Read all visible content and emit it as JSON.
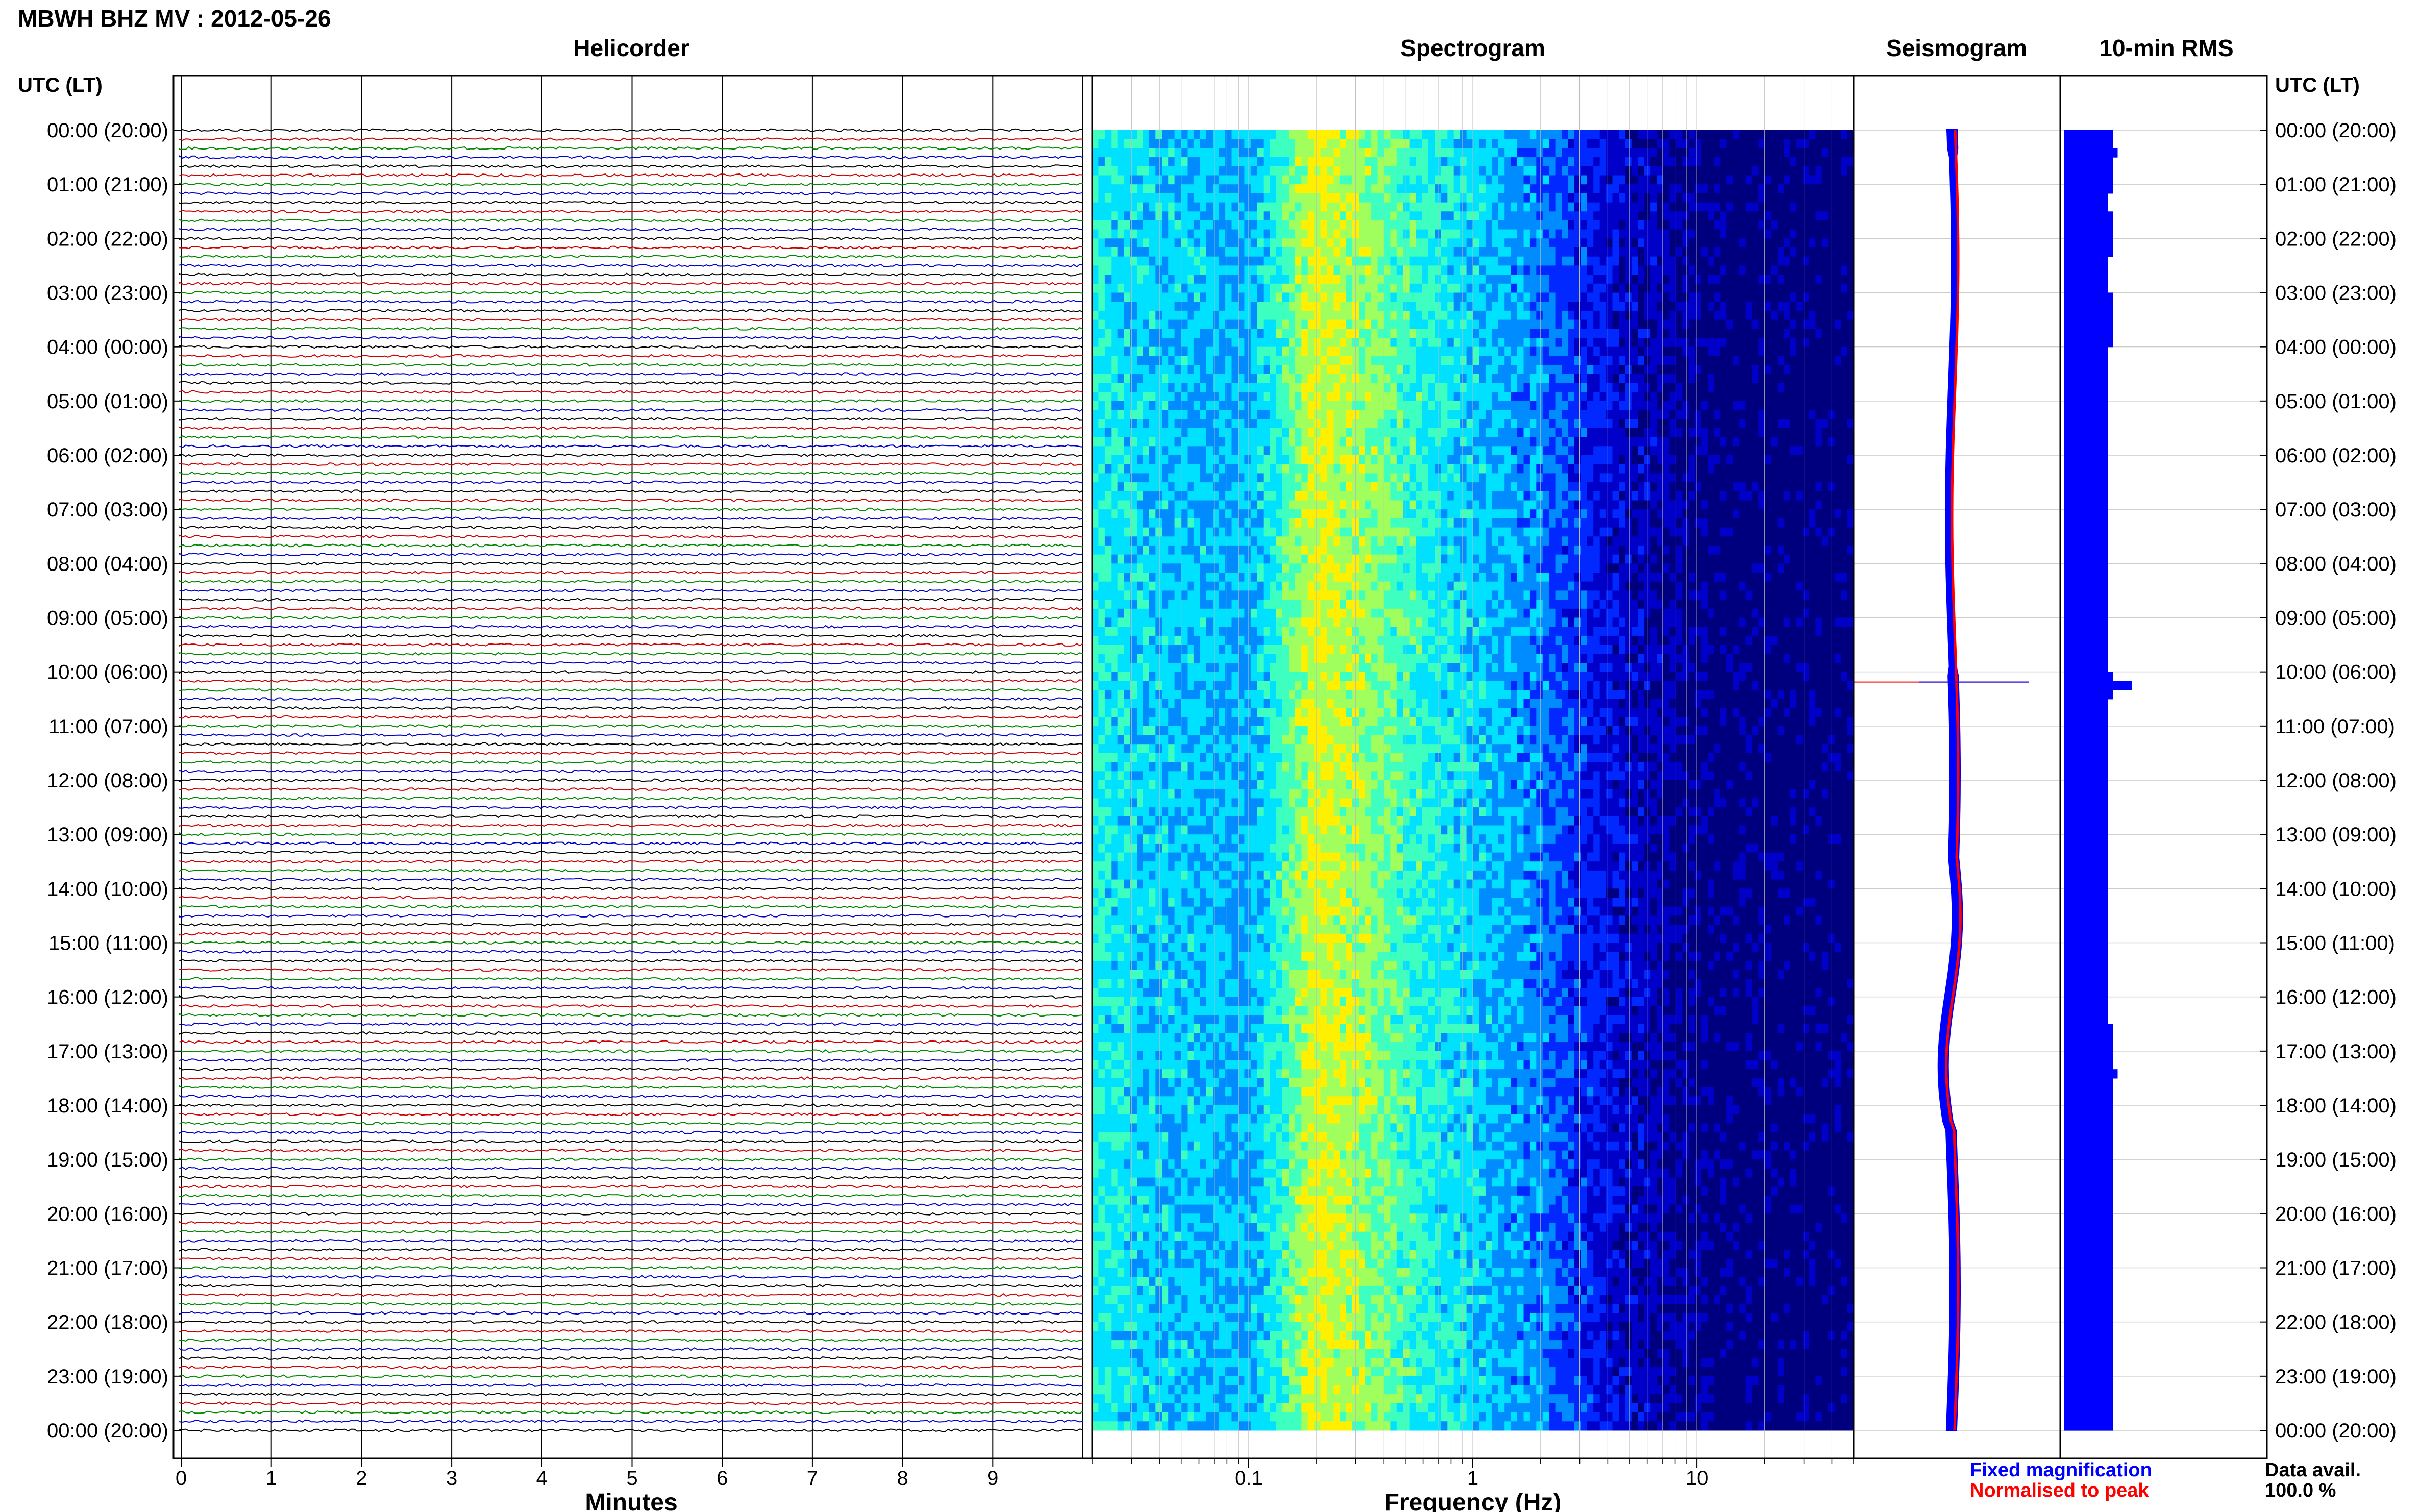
{
  "header": {
    "title": "MBWH BHZ MV : 2012-05-26",
    "utc_label_left": "UTC (LT)",
    "utc_label_right": "UTC (LT)"
  },
  "panels": {
    "helicorder": "Helicorder",
    "spectrogram": "Spectrogram",
    "seismogram": "Seismogram",
    "rms": "10-min RMS"
  },
  "axes": {
    "helicorder_xlabel": "Minutes",
    "spectrogram_xlabel": "Frequency (Hz)"
  },
  "legend": {
    "fixed": "Fixed magnification",
    "normalised": "Normalised to peak",
    "fixed_color": "#0000ff",
    "normalised_color": "#ff0000"
  },
  "data_avail": {
    "label": "Data avail.",
    "value": "100.0 %"
  },
  "chart_data": {
    "type": "heatmap",
    "time_labels": [
      "00:00 (20:00)",
      "01:00 (21:00)",
      "02:00 (22:00)",
      "03:00 (23:00)",
      "04:00 (00:00)",
      "05:00 (01:00)",
      "06:00 (02:00)",
      "07:00 (03:00)",
      "08:00 (04:00)",
      "09:00 (05:00)",
      "10:00 (06:00)",
      "11:00 (07:00)",
      "12:00 (08:00)",
      "13:00 (09:00)",
      "14:00 (10:00)",
      "15:00 (11:00)",
      "16:00 (12:00)",
      "17:00 (13:00)",
      "18:00 (14:00)",
      "19:00 (15:00)",
      "20:00 (16:00)",
      "21:00 (17:00)",
      "22:00 (18:00)",
      "23:00 (19:00)",
      "00:00 (20:00)"
    ],
    "minute_ticks": [
      "0",
      "1",
      "2",
      "3",
      "4",
      "5",
      "6",
      "7",
      "8",
      "9"
    ],
    "freq_ticks": [
      {
        "value": 0.1,
        "label": "0.1"
      },
      {
        "value": 1,
        "label": "1"
      },
      {
        "value": 10,
        "label": "10"
      }
    ],
    "freq_range": [
      0.02,
      50
    ],
    "trace_colors": [
      "#000000",
      "#cc0000",
      "#008800",
      "#0000cc"
    ],
    "colormap": [
      "#00007f",
      "#0000c8",
      "#0028ff",
      "#008cff",
      "#00e0ff",
      "#3cffc0",
      "#a0ff5c",
      "#fff000"
    ],
    "spectrum_profile": [
      {
        "f": 0.02,
        "level": 0.62
      },
      {
        "f": 0.035,
        "level": 0.55
      },
      {
        "f": 0.06,
        "level": 0.52
      },
      {
        "f": 0.1,
        "level": 0.5
      },
      {
        "f": 0.13,
        "level": 0.62
      },
      {
        "f": 0.2,
        "level": 0.9
      },
      {
        "f": 0.35,
        "level": 0.78
      },
      {
        "f": 0.7,
        "level": 0.6
      },
      {
        "f": 1.0,
        "level": 0.55
      },
      {
        "f": 2.0,
        "level": 0.42
      },
      {
        "f": 4.0,
        "level": 0.22
      },
      {
        "f": 8.0,
        "level": 0.12
      },
      {
        "f": 12,
        "level": 0.06
      },
      {
        "f": 50,
        "level": 0.04
      }
    ],
    "seismogram_amplitude_10min": [
      3,
      3,
      3,
      2,
      2,
      2,
      2,
      2,
      2,
      2,
      2,
      2,
      2,
      2,
      2,
      2,
      2,
      2,
      2,
      2,
      2,
      2,
      2,
      2,
      2,
      2,
      2,
      2,
      2,
      2,
      2,
      2,
      2,
      2,
      2,
      2,
      2,
      2,
      2,
      2,
      2,
      2,
      2,
      2,
      2,
      2,
      2,
      2,
      2,
      2,
      2,
      2,
      2,
      2,
      2,
      2,
      2,
      2,
      2,
      2,
      3,
      3,
      3,
      3,
      3,
      3,
      3,
      3,
      3,
      3,
      3,
      3,
      3,
      3,
      3,
      3,
      3,
      3,
      3,
      3,
      3,
      3,
      3,
      3,
      3,
      3,
      3,
      3,
      3,
      3,
      3,
      3,
      3,
      3,
      3,
      3,
      3,
      3,
      3,
      3,
      3,
      3,
      3,
      3,
      3,
      3,
      3,
      3,
      3,
      3,
      3,
      3,
      3,
      3,
      3,
      3,
      3,
      3,
      3,
      3,
      3,
      3,
      3,
      3,
      3,
      3,
      3,
      3,
      3,
      3,
      3,
      3,
      3,
      3,
      3,
      3,
      3,
      3,
      3,
      3,
      3,
      3,
      3,
      3
    ],
    "rms_10min": [
      10,
      10,
      11,
      10,
      10,
      10,
      10,
      9,
      9,
      10,
      10,
      10,
      10,
      10,
      9,
      9,
      9,
      9,
      10,
      10,
      10,
      10,
      10,
      10,
      9,
      9,
      9,
      9,
      9,
      9,
      9,
      9,
      9,
      9,
      9,
      9,
      9,
      9,
      9,
      9,
      9,
      9,
      9,
      9,
      9,
      9,
      9,
      9,
      9,
      9,
      9,
      9,
      9,
      9,
      9,
      9,
      9,
      9,
      9,
      9,
      10,
      14,
      10,
      9,
      9,
      9,
      9,
      9,
      9,
      9,
      9,
      9,
      9,
      9,
      9,
      9,
      9,
      9,
      9,
      9,
      9,
      9,
      9,
      9,
      9,
      9,
      9,
      9,
      9,
      9,
      9,
      9,
      9,
      9,
      9,
      9,
      9,
      9,
      9,
      10,
      10,
      10,
      10,
      10,
      11,
      10,
      10,
      10,
      10,
      10,
      10,
      10,
      10,
      10,
      10,
      10,
      10,
      10,
      10,
      10,
      10,
      10,
      10,
      10,
      10,
      10,
      10,
      10,
      10,
      10,
      10,
      10,
      10,
      10,
      10,
      10,
      10,
      10,
      10,
      10,
      10,
      10,
      10,
      10
    ]
  }
}
